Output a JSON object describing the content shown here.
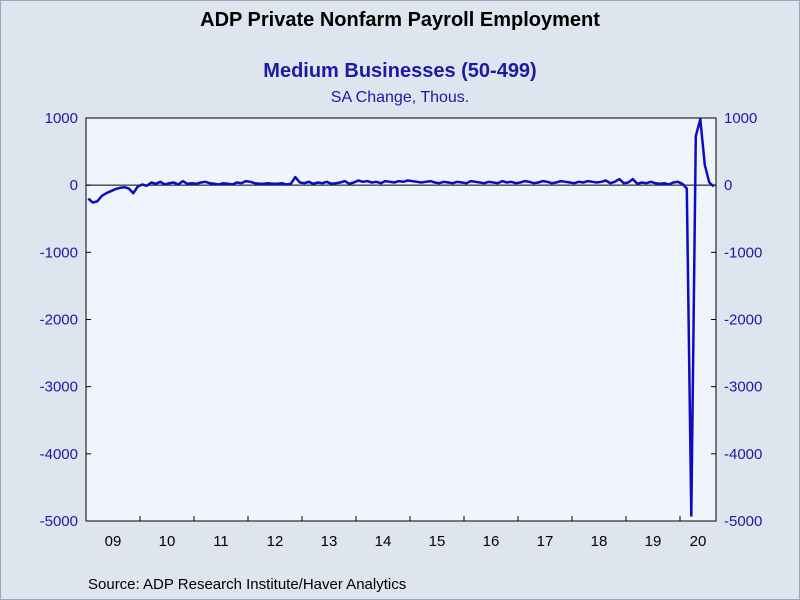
{
  "title": "ADP Private Nonfarm Payroll Employment",
  "subtitle": "Medium Businesses (50-499)",
  "units": "SA Change, Thous.",
  "source": "Source:  ADP Research Institute/Haver Analytics",
  "colors": {
    "background": "#dfe5ee",
    "plot_background": "#f0f5fc",
    "series": "#0d0dbf",
    "axis_text": "#1a1aa6"
  },
  "chart_data": {
    "type": "line",
    "title": "ADP Private Nonfarm Payroll Employment",
    "subtitle": "Medium Businesses (50-499)",
    "ylabel": "SA Change, Thous.",
    "ylim": [
      -5000,
      1000
    ],
    "yticks": [
      1000,
      0,
      -1000,
      -2000,
      -3000,
      -4000,
      -5000
    ],
    "yaxis_both_sides": true,
    "zero_line": true,
    "grid": false,
    "x_start": "2009-01",
    "x_end": "2020-08",
    "xticks": [
      "09",
      "10",
      "11",
      "12",
      "13",
      "14",
      "15",
      "16",
      "17",
      "18",
      "19",
      "20"
    ],
    "series": [
      {
        "name": "",
        "x": [
          "2009-01",
          "2009-02",
          "2009-03",
          "2009-04",
          "2009-05",
          "2009-06",
          "2009-07",
          "2009-08",
          "2009-09",
          "2009-10",
          "2009-11",
          "2009-12",
          "2010-01",
          "2010-02",
          "2010-03",
          "2010-04",
          "2010-05",
          "2010-06",
          "2010-07",
          "2010-08",
          "2010-09",
          "2010-10",
          "2010-11",
          "2010-12",
          "2011-01",
          "2011-02",
          "2011-03",
          "2011-04",
          "2011-05",
          "2011-06",
          "2011-07",
          "2011-08",
          "2011-09",
          "2011-10",
          "2011-11",
          "2011-12",
          "2012-01",
          "2012-02",
          "2012-03",
          "2012-04",
          "2012-05",
          "2012-06",
          "2012-07",
          "2012-08",
          "2012-09",
          "2012-10",
          "2012-11",
          "2012-12",
          "2013-01",
          "2013-02",
          "2013-03",
          "2013-04",
          "2013-05",
          "2013-06",
          "2013-07",
          "2013-08",
          "2013-09",
          "2013-10",
          "2013-11",
          "2013-12",
          "2014-01",
          "2014-02",
          "2014-03",
          "2014-04",
          "2014-05",
          "2014-06",
          "2014-07",
          "2014-08",
          "2014-09",
          "2014-10",
          "2014-11",
          "2014-12",
          "2015-01",
          "2015-02",
          "2015-03",
          "2015-04",
          "2015-05",
          "2015-06",
          "2015-07",
          "2015-08",
          "2015-09",
          "2015-10",
          "2015-11",
          "2015-12",
          "2016-01",
          "2016-02",
          "2016-03",
          "2016-04",
          "2016-05",
          "2016-06",
          "2016-07",
          "2016-08",
          "2016-09",
          "2016-10",
          "2016-11",
          "2016-12",
          "2017-01",
          "2017-02",
          "2017-03",
          "2017-04",
          "2017-05",
          "2017-06",
          "2017-07",
          "2017-08",
          "2017-09",
          "2017-10",
          "2017-11",
          "2017-12",
          "2018-01",
          "2018-02",
          "2018-03",
          "2018-04",
          "2018-05",
          "2018-06",
          "2018-07",
          "2018-08",
          "2018-09",
          "2018-10",
          "2018-11",
          "2018-12",
          "2019-01",
          "2019-02",
          "2019-03",
          "2019-04",
          "2019-05",
          "2019-06",
          "2019-07",
          "2019-08",
          "2019-09",
          "2019-10",
          "2019-11",
          "2019-12",
          "2020-01",
          "2020-02",
          "2020-03",
          "2020-04",
          "2020-05",
          "2020-06",
          "2020-07",
          "2020-08"
        ],
        "values": [
          -200,
          -260,
          -240,
          -160,
          -120,
          -90,
          -60,
          -40,
          -30,
          -50,
          -120,
          -20,
          10,
          -10,
          40,
          20,
          50,
          10,
          30,
          40,
          10,
          60,
          20,
          30,
          20,
          40,
          50,
          30,
          20,
          10,
          30,
          20,
          10,
          40,
          30,
          60,
          50,
          30,
          20,
          20,
          30,
          20,
          20,
          30,
          10,
          20,
          120,
          40,
          30,
          50,
          20,
          40,
          30,
          50,
          20,
          30,
          40,
          60,
          20,
          40,
          70,
          50,
          60,
          40,
          50,
          30,
          60,
          50,
          40,
          60,
          50,
          70,
          60,
          50,
          40,
          50,
          60,
          40,
          30,
          50,
          40,
          30,
          50,
          40,
          30,
          60,
          50,
          40,
          30,
          50,
          40,
          30,
          60,
          40,
          50,
          30,
          40,
          60,
          50,
          30,
          40,
          60,
          50,
          30,
          40,
          60,
          50,
          40,
          30,
          50,
          40,
          60,
          50,
          40,
          50,
          70,
          30,
          50,
          90,
          30,
          40,
          90,
          20,
          40,
          30,
          50,
          30,
          20,
          30,
          10,
          40,
          50,
          20,
          -50,
          -4920,
          730,
          980,
          300,
          40,
          -20
        ]
      }
    ]
  }
}
